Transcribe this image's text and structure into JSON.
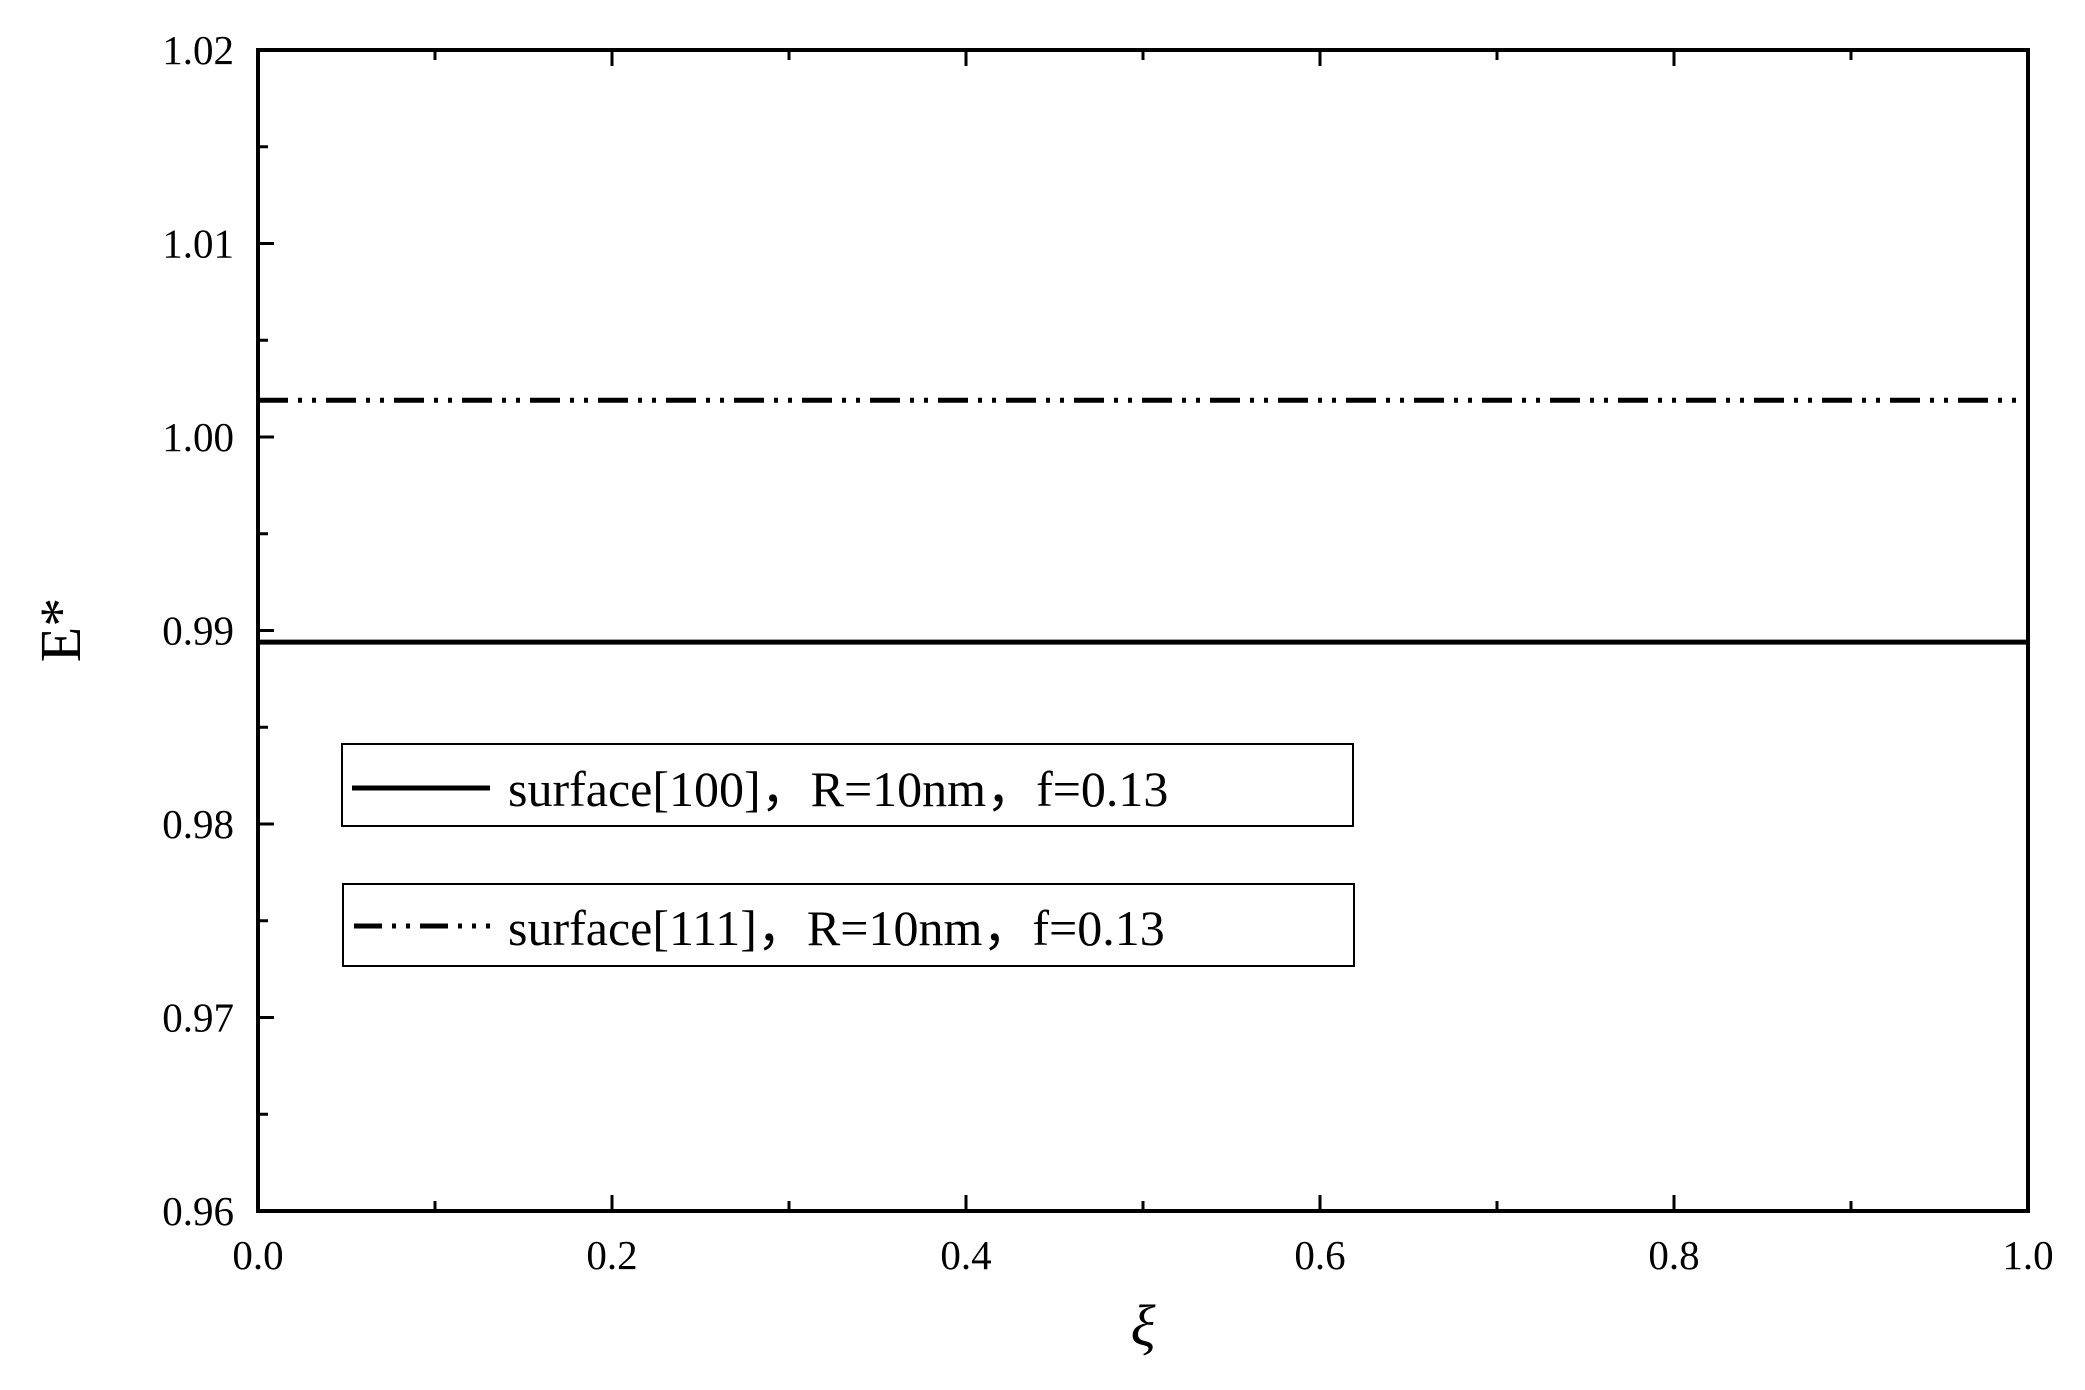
{
  "chart_data": {
    "type": "line",
    "xlabel": "ξ",
    "ylabel": "E*",
    "xlim": [
      0.0,
      1.0
    ],
    "ylim": [
      0.96,
      1.02
    ],
    "x_ticks": [
      "0.0",
      "0.2",
      "0.4",
      "0.6",
      "0.8",
      "1.0"
    ],
    "y_ticks": [
      "0.96",
      "0.97",
      "0.98",
      "0.99",
      "1.00",
      "1.01",
      "1.02"
    ],
    "grid": false,
    "legend_position": "middle-left",
    "series": [
      {
        "name": "surface[100]，R=10nm，f=0.13",
        "style": "solid",
        "x": [
          0.0,
          1.0
        ],
        "y": [
          0.9894,
          0.9894
        ]
      },
      {
        "name": "surface[111]，R=10nm，f=0.13",
        "style": "dash-dot-dot",
        "x": [
          0.0,
          1.0
        ],
        "y": [
          1.0019,
          1.0019
        ]
      }
    ],
    "colors": {
      "axis": "#000000",
      "series": "#000000"
    }
  }
}
